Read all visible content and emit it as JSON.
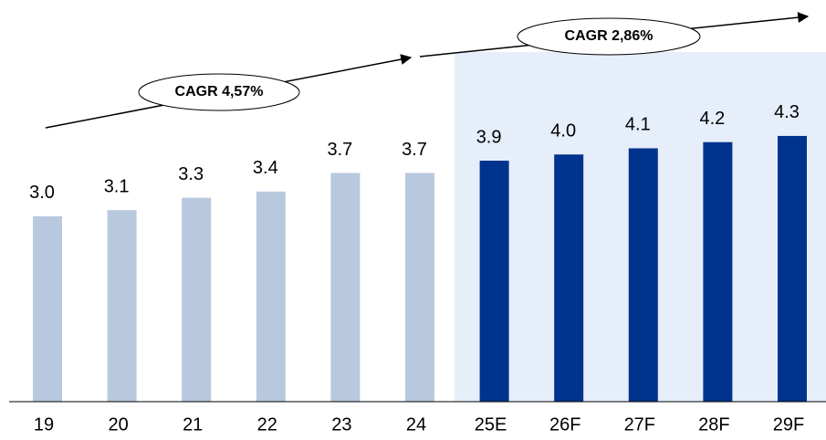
{
  "chart_data": {
    "type": "bar",
    "categories": [
      "19",
      "20",
      "21",
      "22",
      "23",
      "24",
      "25E",
      "26F",
      "27F",
      "28F",
      "29F"
    ],
    "values": [
      3.0,
      3.1,
      3.3,
      3.4,
      3.7,
      3.7,
      3.9,
      4.0,
      4.1,
      4.2,
      4.3
    ],
    "value_labels": [
      "3.0",
      "3.1",
      "3.3",
      "3.4",
      "3.7",
      "3.7",
      "3.9",
      "4.0",
      "4.1",
      "4.2",
      "4.3"
    ],
    "colors": [
      "#b8c8de",
      "#b8c8de",
      "#b8c8de",
      "#b8c8de",
      "#b8c8de",
      "#b8c8de",
      "#00338d",
      "#00338d",
      "#00338d",
      "#00338d",
      "#00338d"
    ],
    "ylim": [
      0,
      6.5
    ],
    "annotations": [
      "CAGR 4,57%",
      "CAGR 2,86%"
    ]
  }
}
